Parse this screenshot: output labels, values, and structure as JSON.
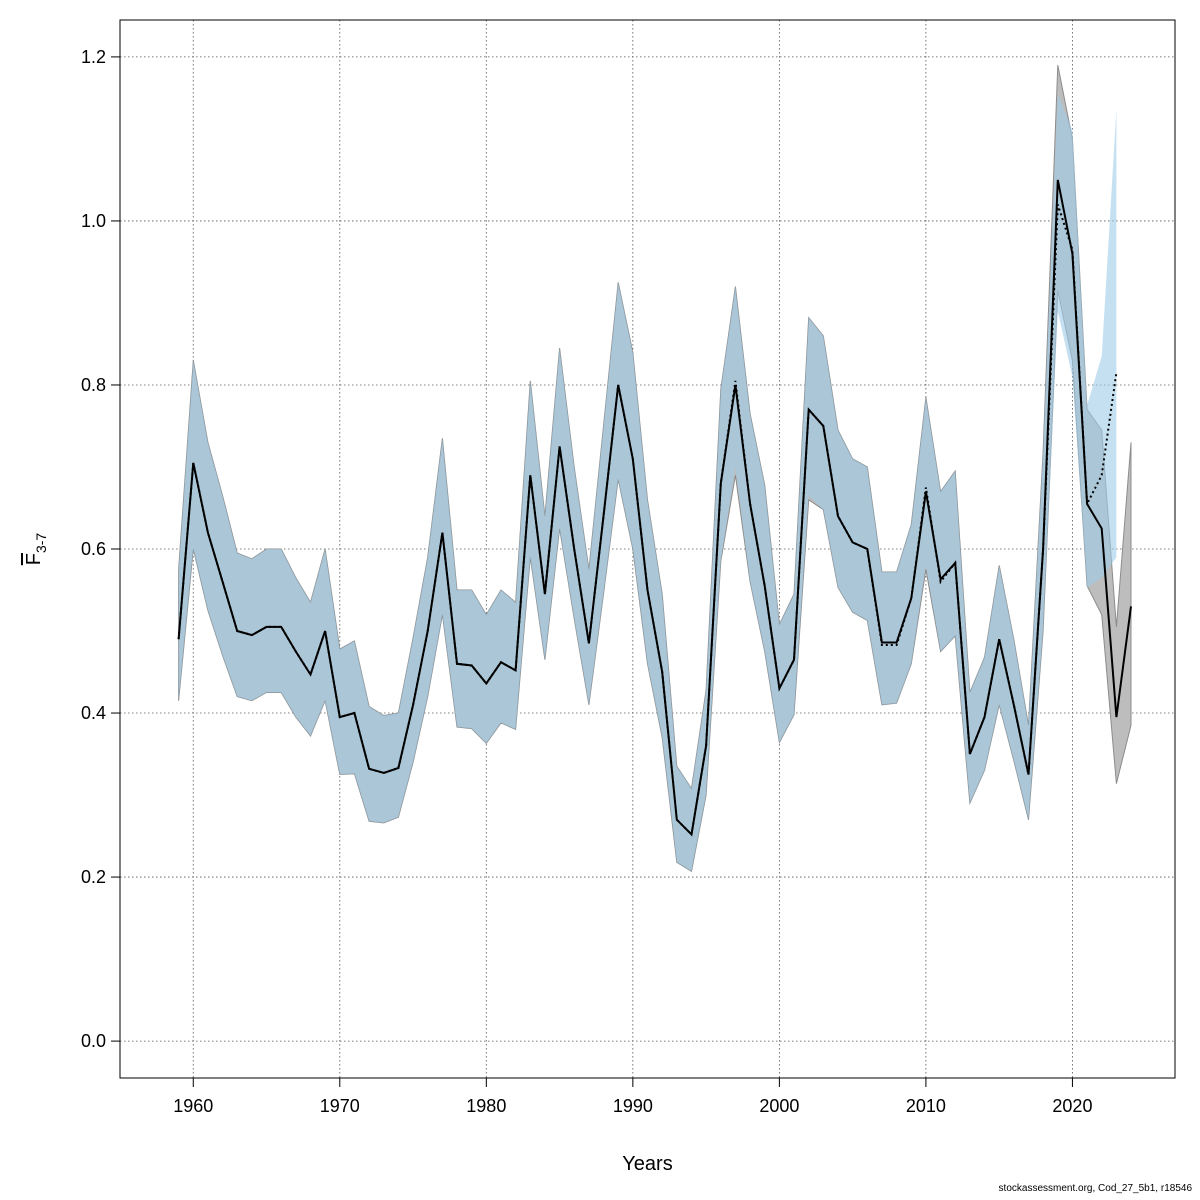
{
  "chart_data": {
    "type": "line",
    "title": "",
    "xlabel": "Years",
    "ylabel": {
      "base": "F",
      "subscript": "3-7"
    },
    "xlim": [
      1955,
      2027
    ],
    "ylim": [
      -0.045,
      1.245
    ],
    "xticks": [
      1960,
      1970,
      1980,
      1990,
      2000,
      2010,
      2020
    ],
    "yticks": [
      0.0,
      0.2,
      0.4,
      0.6,
      0.8,
      1.0,
      1.2
    ],
    "ytick_labels": [
      "0.0",
      "0.2",
      "0.4",
      "0.6",
      "0.8",
      "1.0",
      "1.2"
    ],
    "grid": true,
    "colors": {
      "grey_band": "#bdbdbd",
      "blue_band": "#9fcbe8",
      "band_edge": "#8c8c8c",
      "line": "#000000"
    },
    "series": [
      {
        "style": "solid black line with grey confidence band",
        "x": [
          1959,
          1960,
          1961,
          1962,
          1963,
          1964,
          1965,
          1966,
          1967,
          1968,
          1969,
          1970,
          1971,
          1972,
          1973,
          1974,
          1975,
          1976,
          1977,
          1978,
          1979,
          1980,
          1981,
          1982,
          1983,
          1984,
          1985,
          1986,
          1987,
          1988,
          1989,
          1990,
          1991,
          1992,
          1993,
          1994,
          1995,
          1996,
          1997,
          1998,
          1999,
          2000,
          2001,
          2002,
          2003,
          2004,
          2005,
          2006,
          2007,
          2008,
          2009,
          2010,
          2011,
          2012,
          2013,
          2014,
          2015,
          2016,
          2017,
          2018,
          2019,
          2020,
          2021,
          2022,
          2023,
          2024
        ],
        "y": [
          0.49,
          0.705,
          0.62,
          0.56,
          0.5,
          0.495,
          0.505,
          0.505,
          0.475,
          0.447,
          0.5,
          0.395,
          0.4,
          0.332,
          0.327,
          0.333,
          0.41,
          0.5,
          0.62,
          0.46,
          0.458,
          0.436,
          0.462,
          0.452,
          0.69,
          0.545,
          0.725,
          0.6,
          0.485,
          0.64,
          0.8,
          0.71,
          0.55,
          0.45,
          0.27,
          0.252,
          0.36,
          0.68,
          0.8,
          0.655,
          0.555,
          0.43,
          0.465,
          0.77,
          0.75,
          0.64,
          0.608,
          0.6,
          0.486,
          0.486,
          0.54,
          0.67,
          0.563,
          0.583,
          0.35,
          0.395,
          0.49,
          0.41,
          0.325,
          0.6,
          1.05,
          0.96,
          0.655,
          0.625,
          0.395,
          0.53
        ],
        "lower": [
          0.415,
          0.6,
          0.525,
          0.47,
          0.42,
          0.415,
          0.425,
          0.425,
          0.395,
          0.372,
          0.415,
          0.325,
          0.326,
          0.268,
          0.266,
          0.273,
          0.34,
          0.42,
          0.52,
          0.383,
          0.381,
          0.363,
          0.388,
          0.38,
          0.59,
          0.465,
          0.625,
          0.515,
          0.41,
          0.545,
          0.685,
          0.6,
          0.46,
          0.37,
          0.218,
          0.207,
          0.3,
          0.585,
          0.69,
          0.56,
          0.475,
          0.364,
          0.398,
          0.66,
          0.648,
          0.553,
          0.523,
          0.513,
          0.41,
          0.412,
          0.46,
          0.575,
          0.475,
          0.494,
          0.29,
          0.33,
          0.41,
          0.342,
          0.27,
          0.5,
          0.915,
          0.83,
          0.555,
          0.52,
          0.314,
          0.385
        ],
        "upper": [
          0.575,
          0.83,
          0.73,
          0.665,
          0.595,
          0.588,
          0.6,
          0.6,
          0.565,
          0.535,
          0.6,
          0.478,
          0.488,
          0.408,
          0.397,
          0.4,
          0.492,
          0.59,
          0.735,
          0.55,
          0.55,
          0.52,
          0.55,
          0.535,
          0.805,
          0.64,
          0.845,
          0.7,
          0.575,
          0.75,
          0.925,
          0.84,
          0.66,
          0.545,
          0.335,
          0.308,
          0.428,
          0.795,
          0.92,
          0.765,
          0.678,
          0.508,
          0.545,
          0.882,
          0.86,
          0.745,
          0.71,
          0.7,
          0.572,
          0.572,
          0.63,
          0.785,
          0.67,
          0.695,
          0.425,
          0.468,
          0.58,
          0.49,
          0.385,
          0.718,
          1.19,
          1.1,
          0.77,
          0.745,
          0.505,
          0.73
        ]
      },
      {
        "style": "dotted line with blue confidence band",
        "x": [
          1959,
          1960,
          1961,
          1962,
          1963,
          1964,
          1965,
          1966,
          1967,
          1968,
          1969,
          1970,
          1971,
          1972,
          1973,
          1974,
          1975,
          1976,
          1977,
          1978,
          1979,
          1980,
          1981,
          1982,
          1983,
          1984,
          1985,
          1986,
          1987,
          1988,
          1989,
          1990,
          1991,
          1992,
          1993,
          1994,
          1995,
          1996,
          1997,
          1998,
          1999,
          2000,
          2001,
          2002,
          2003,
          2004,
          2005,
          2006,
          2007,
          2008,
          2009,
          2010,
          2011,
          2012,
          2013,
          2014,
          2015,
          2016,
          2017,
          2018,
          2019,
          2020,
          2021,
          2022,
          2023
        ],
        "y": [
          0.49,
          0.705,
          0.62,
          0.56,
          0.5,
          0.495,
          0.505,
          0.505,
          0.475,
          0.447,
          0.5,
          0.395,
          0.4,
          0.332,
          0.327,
          0.333,
          0.41,
          0.5,
          0.62,
          0.46,
          0.458,
          0.436,
          0.462,
          0.452,
          0.69,
          0.545,
          0.725,
          0.6,
          0.485,
          0.64,
          0.8,
          0.71,
          0.55,
          0.45,
          0.27,
          0.252,
          0.36,
          0.68,
          0.805,
          0.655,
          0.555,
          0.43,
          0.465,
          0.77,
          0.75,
          0.64,
          0.608,
          0.6,
          0.483,
          0.483,
          0.54,
          0.675,
          0.56,
          0.583,
          0.35,
          0.395,
          0.49,
          0.41,
          0.325,
          0.6,
          1.02,
          0.965,
          0.655,
          0.69,
          0.815
        ],
        "lower": [
          0.415,
          0.6,
          0.525,
          0.47,
          0.42,
          0.415,
          0.425,
          0.425,
          0.395,
          0.372,
          0.415,
          0.325,
          0.326,
          0.268,
          0.266,
          0.273,
          0.34,
          0.42,
          0.52,
          0.383,
          0.381,
          0.363,
          0.388,
          0.38,
          0.59,
          0.465,
          0.625,
          0.515,
          0.41,
          0.545,
          0.685,
          0.6,
          0.46,
          0.37,
          0.218,
          0.207,
          0.3,
          0.585,
          0.7,
          0.56,
          0.475,
          0.364,
          0.398,
          0.665,
          0.648,
          0.553,
          0.523,
          0.513,
          0.41,
          0.412,
          0.46,
          0.58,
          0.475,
          0.494,
          0.29,
          0.33,
          0.41,
          0.342,
          0.27,
          0.5,
          0.89,
          0.81,
          0.553,
          0.565,
          0.59
        ],
        "upper": [
          0.575,
          0.83,
          0.73,
          0.665,
          0.595,
          0.588,
          0.6,
          0.6,
          0.565,
          0.535,
          0.6,
          0.478,
          0.488,
          0.408,
          0.397,
          0.4,
          0.492,
          0.59,
          0.735,
          0.55,
          0.55,
          0.52,
          0.55,
          0.535,
          0.805,
          0.64,
          0.845,
          0.7,
          0.575,
          0.75,
          0.925,
          0.84,
          0.66,
          0.545,
          0.335,
          0.308,
          0.428,
          0.795,
          0.92,
          0.765,
          0.678,
          0.508,
          0.545,
          0.882,
          0.86,
          0.745,
          0.71,
          0.7,
          0.572,
          0.572,
          0.63,
          0.785,
          0.67,
          0.695,
          0.425,
          0.468,
          0.58,
          0.49,
          0.385,
          0.718,
          1.155,
          1.11,
          0.775,
          0.835,
          1.135
        ]
      }
    ]
  },
  "footer": {
    "text": "stockassessment.org, Cod_27_5b1, r18546"
  }
}
